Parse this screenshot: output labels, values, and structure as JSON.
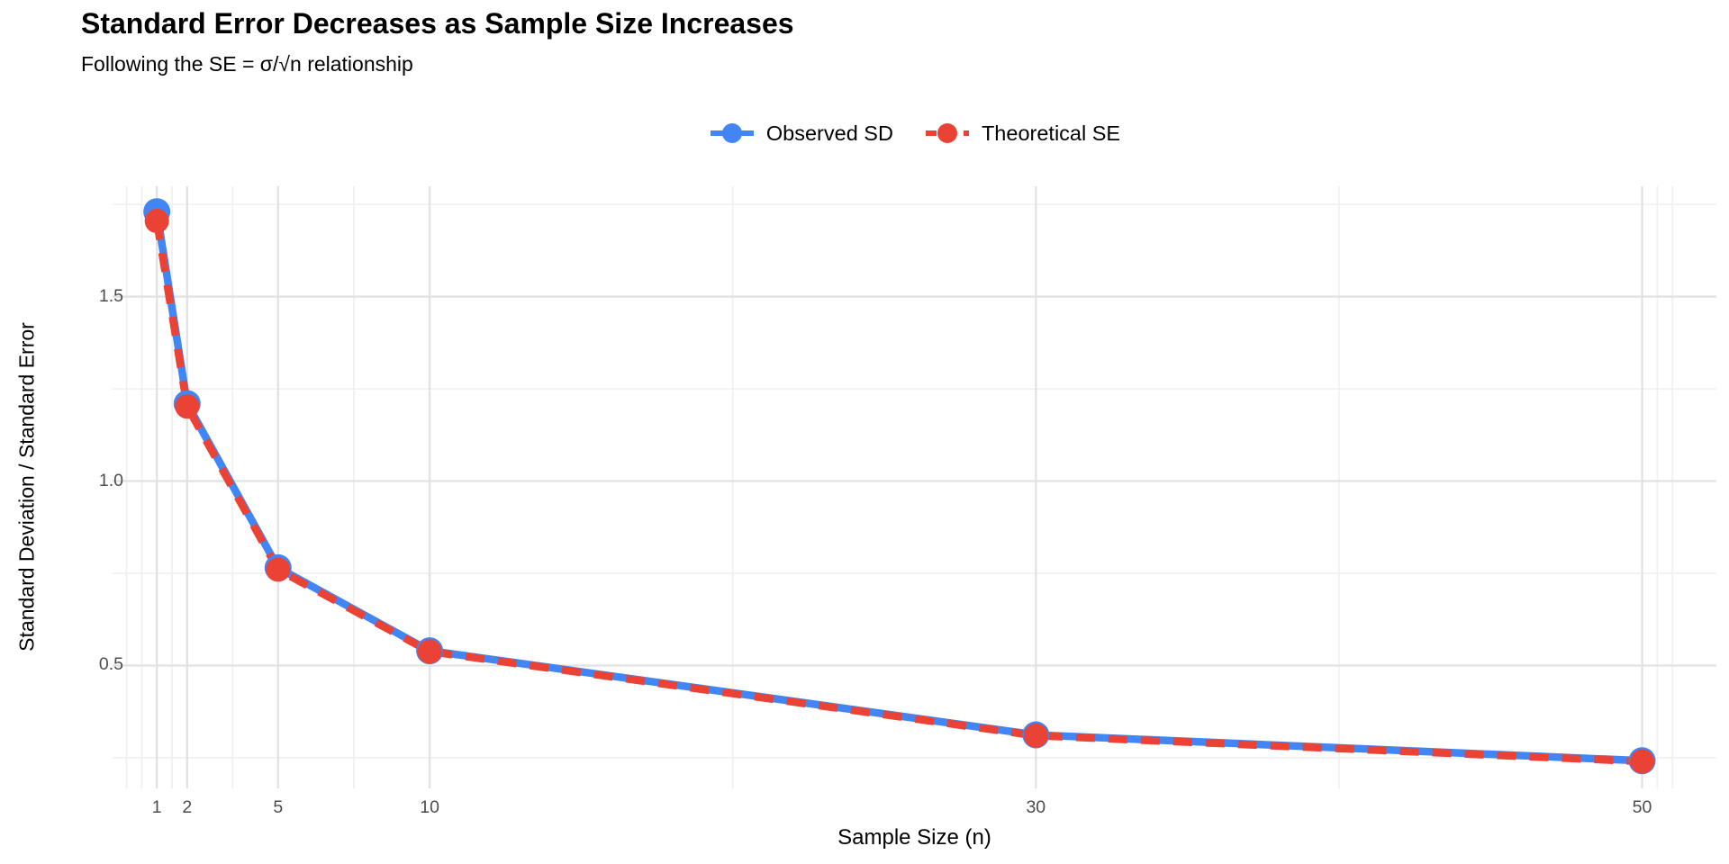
{
  "title": "Standard Error Decreases as Sample Size Increases",
  "subtitle": "Following the SE = σ/√n relationship",
  "legend": {
    "position": "top-center",
    "items": [
      {
        "label": "Observed SD",
        "color": "#4285F4",
        "dashed": false
      },
      {
        "label": "Theoretical SE",
        "color": "#EA4335",
        "dashed": true
      }
    ]
  },
  "axes": {
    "x_title": "Sample Size (n)",
    "y_title": "Standard Deviation / Standard Error",
    "x_tick_labels": [
      "1",
      "2",
      "5",
      "10",
      "30",
      "50"
    ],
    "y_tick_labels": [
      "0.5",
      "1.0",
      "1.5"
    ]
  },
  "chart_data": {
    "type": "line",
    "title": "Standard Error Decreases as Sample Size Increases",
    "subtitle": "Following the SE = σ/√n relationship",
    "xlabel": "Sample Size (n)",
    "ylabel": "Standard Deviation / Standard Error",
    "x": [
      1,
      2,
      5,
      10,
      30,
      50
    ],
    "series": [
      {
        "name": "Observed SD",
        "color": "#4285F4",
        "style": "solid",
        "point_radius": 15,
        "values": [
          1.73,
          1.21,
          0.765,
          0.54,
          0.312,
          0.242
        ]
      },
      {
        "name": "Theoretical SE",
        "color": "#EA4335",
        "style": "dashed",
        "point_radius": 13.5,
        "values": [
          1.705,
          1.202,
          0.76,
          0.538,
          0.31,
          0.24
        ]
      }
    ],
    "x_ticks": [
      1,
      2,
      5,
      10,
      30,
      50
    ],
    "x_minor": [
      0,
      0.5,
      1.5,
      3.5,
      7.5,
      20,
      40,
      50.5,
      51
    ],
    "y_ticks": [
      0.5,
      1.0,
      1.5
    ],
    "y_minor": [
      0.25,
      0.75,
      1.25,
      1.75
    ],
    "xlim": [
      -0.46,
      52.45
    ],
    "ylim": [
      0.167,
      1.799
    ],
    "grid": true,
    "legend_position": "top-center",
    "colors": {
      "background": "#FFFFFF",
      "major_grid": "#E2E2E2",
      "minor_grid": "#F0F0F0",
      "tick_text": "#4D4D4D"
    }
  }
}
